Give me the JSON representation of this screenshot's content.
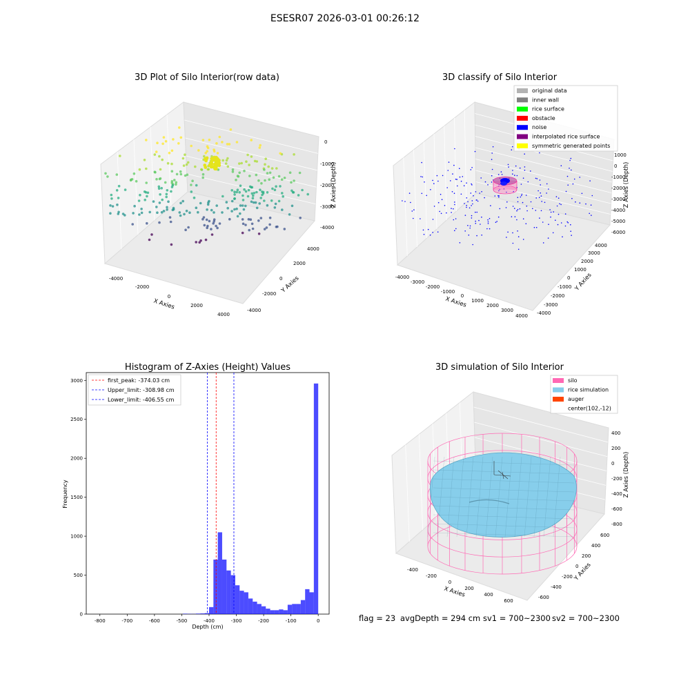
{
  "figure": {
    "suptitle": "ESESR07 2026-03-01 00:26:12",
    "footer": {
      "flag": "flag = 23",
      "avg_depth": "avgDepth = 294 cm",
      "sv1": "sv1 = 700~2300",
      "sv2": "sv2 = 700~2300"
    }
  },
  "chart_data": [
    {
      "type": "scatter",
      "title": "3D Plot of Silo Interior(row data)",
      "xlabel": "X Axies",
      "ylabel": "Y Axies",
      "zlabel": "Z Axies (Depth)",
      "xticks": [
        "-4000",
        "-2000",
        "0",
        "2000",
        "4000"
      ],
      "yticks": [
        "-4000",
        "-2000",
        "0",
        "2000",
        "4000"
      ],
      "zticks": [
        "0",
        "-1000",
        "-2000",
        "-3000",
        "-4000"
      ],
      "xlim": [
        -4500,
        4500
      ],
      "ylim": [
        -4500,
        4500
      ],
      "zlim": [
        -4500,
        200
      ],
      "colormap": "viridis (by depth)",
      "grid": true
    },
    {
      "type": "scatter",
      "title": "3D classify of Silo Interior",
      "xlabel": "X Axies",
      "ylabel": "Y Axies",
      "zlabel": "Z Axies (Depth)",
      "xticks": [
        "-4000",
        "-3000",
        "-2000",
        "-1000",
        "0",
        "1000",
        "2000",
        "3000",
        "4000"
      ],
      "yticks": [
        "-4000",
        "-3000",
        "-2000",
        "-1000",
        "0",
        "1000",
        "2000",
        "3000",
        "4000"
      ],
      "zticks": [
        "1000",
        "0",
        "-1000",
        "-2000",
        "-3000",
        "-4000",
        "-5000",
        "-6000"
      ],
      "legend_position": "top-right",
      "legend": [
        {
          "label": "original data",
          "color": "#b3b3b3"
        },
        {
          "label": "inner wall",
          "color": "#808080"
        },
        {
          "label": "rice surface",
          "color": "#00ff00"
        },
        {
          "label": "obstacle",
          "color": "#ff0000"
        },
        {
          "label": "noise",
          "color": "#0000ff"
        },
        {
          "label": "interpolated rice surface",
          "color": "#800080"
        },
        {
          "label": "symmetric generated points",
          "color": "#ffff00"
        }
      ],
      "grid": true
    },
    {
      "type": "bar",
      "title": "Histogram of Z-Axies (Height) Values",
      "xlabel": "Depth (cm)",
      "ylabel": "Frequency",
      "xlim": [
        -850,
        40
      ],
      "ylim": [
        0,
        3100
      ],
      "xticks": [
        -800,
        -700,
        -600,
        -500,
        -400,
        -300,
        -200,
        -100,
        0
      ],
      "yticks": [
        0,
        500,
        1000,
        1500,
        2000,
        2500,
        3000
      ],
      "bin_width": 16,
      "bins_left": [
        -496,
        -480,
        -464,
        -448,
        -432,
        -416,
        -400,
        -384,
        -368,
        -352,
        -336,
        -320,
        -304,
        -288,
        -272,
        -256,
        -240,
        -224,
        -208,
        -192,
        -176,
        -160,
        -144,
        -128,
        -112,
        -96,
        -80,
        -64,
        -48,
        -32,
        -16
      ],
      "values": [
        5,
        3,
        2,
        6,
        8,
        12,
        90,
        700,
        1050,
        700,
        560,
        500,
        370,
        300,
        280,
        200,
        160,
        130,
        100,
        70,
        50,
        50,
        60,
        50,
        120,
        130,
        130,
        180,
        320,
        280,
        2960
      ],
      "bar_color": "#0000ff",
      "lines": [
        {
          "label": "first_peak: -374.03 cm",
          "x": -374.03,
          "color": "#ff0000"
        },
        {
          "label": "Upper_limit: -308.98 cm",
          "x": -308.98,
          "color": "#0000ff"
        },
        {
          "label": "Lower_limit: -406.55 cm",
          "x": -406.55,
          "color": "#0000ff"
        }
      ],
      "legend_position": "top-left"
    },
    {
      "type": "surface",
      "title": "3D simulation of Silo Interior",
      "xlabel": "X Axies",
      "ylabel": "Y Axies",
      "zlabel": "Z Axies (Depth)",
      "xticks": [
        "-400",
        "-200",
        "0",
        "200",
        "400",
        "600"
      ],
      "yticks": [
        "-600",
        "-400",
        "-200",
        "0",
        "200",
        "400",
        "600"
      ],
      "zticks": [
        "400",
        "200",
        "0",
        "-200",
        "-400",
        "-600",
        "-800"
      ],
      "legend_position": "top-right",
      "legend": [
        {
          "label": "silo",
          "color": "#ff69b4"
        },
        {
          "label": "rice simulation",
          "color": "#87ceeb"
        },
        {
          "label": "auger",
          "color": "#ff4500"
        },
        {
          "label": "center(102,-12)",
          "color": ""
        }
      ],
      "grid": true
    }
  ]
}
